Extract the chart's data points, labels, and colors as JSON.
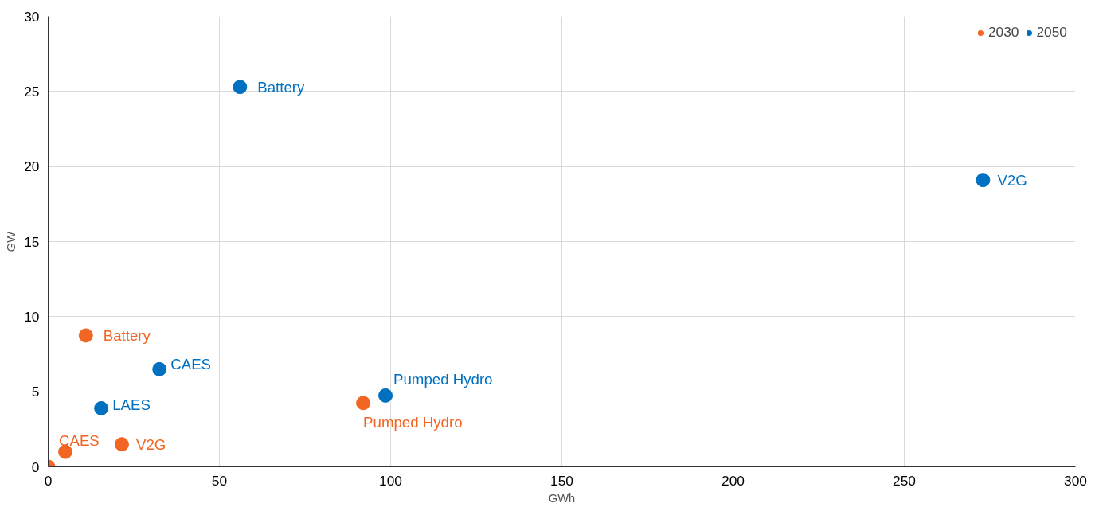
{
  "chart_data": {
    "type": "scatter",
    "xlabel": "GWh",
    "ylabel": "GW",
    "xlim": [
      0,
      300
    ],
    "ylim": [
      0,
      30
    ],
    "xticks": [
      0,
      50,
      100,
      150,
      200,
      250,
      300
    ],
    "yticks": [
      0,
      5,
      10,
      15,
      20,
      25,
      30
    ],
    "grid": true,
    "legend": "top right",
    "marker": "circle",
    "series": [
      {
        "name": "2030",
        "color": "#f26522",
        "x": [
          0,
          5,
          21.5,
          11,
          92
        ],
        "values": [
          0,
          1,
          1.5,
          8.75,
          4.25
        ],
        "value_labels": [
          null,
          "CAES",
          "V2G",
          "Battery",
          "Pumped Hydro"
        ]
      },
      {
        "name": "2050",
        "color": "#0070c0",
        "x": [
          56,
          32.5,
          15.5,
          98.5,
          273
        ],
        "values": [
          25.3,
          6.5,
          3.9,
          4.75,
          19.1
        ],
        "value_labels": [
          "Battery",
          "CAES",
          "LAES",
          "Pumped Hydro",
          "V2G"
        ]
      }
    ]
  }
}
